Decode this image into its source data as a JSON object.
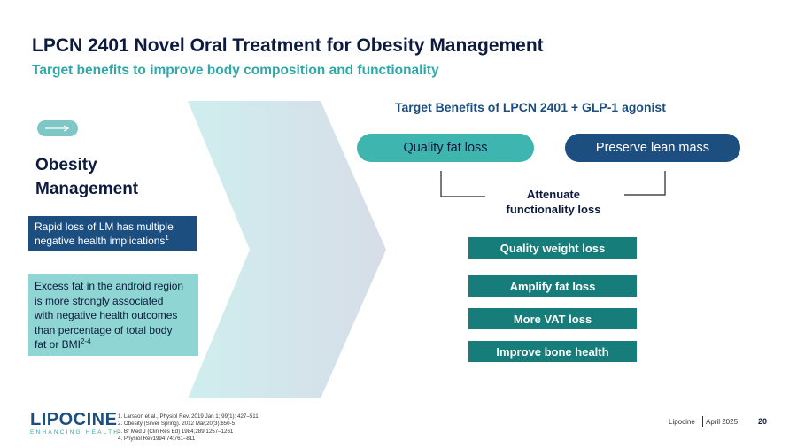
{
  "title": "LPCN 2401 Novel Oral Treatment for Obesity Management",
  "subtitle": "Target benefits to improve body composition and functionality",
  "left": {
    "heading_line1": "Obesity",
    "heading_line2": "Management",
    "rapid_line1": "Rapid loss of LM has multiple",
    "rapid_line2": "negative health implications",
    "rapid_sup": "1",
    "excess_line1": "Excess fat in the android region",
    "excess_line2": "is more strongly associated",
    "excess_line3": "with negative health outcomes",
    "excess_line4": "than percentage of total body",
    "excess_line5": "fat or BMI",
    "excess_sup": "2-4"
  },
  "right": {
    "heading": "Target Benefits of LPCN 2401 + GLP-1 agonist",
    "pill_fat": "Quality fat loss",
    "pill_lean": "Preserve lean mass",
    "attenuate_line1": "Attenuate",
    "attenuate_line2": "functionality loss",
    "benefits": [
      "Quality weight loss",
      "Amplify fat loss",
      "More VAT loss",
      "Improve bone health"
    ]
  },
  "references": [
    "1.  Larsson et al., Physiol Rev. 2019 Jan 1; 99(1): 427–511",
    "2.  Obesity (Silver Spring). 2012 Mar;20(3):650-5",
    "3.  Br Med J (Clin Res Ed) 1984;289:1257–1261",
    "4.  Physiol Rev1994;74:761–811"
  ],
  "logo": {
    "name": "LIPOCINE",
    "tagline": "ENHANCING HEALTH"
  },
  "footer": {
    "company": "Lipocine",
    "date": "April 2025",
    "page": "20"
  },
  "colors": {
    "navy": "#1c4e80",
    "teal": "#3fb5b0",
    "dark_teal": "#167d7a",
    "light_teal": "#8ed5d3",
    "title": "#0d1b3e"
  }
}
